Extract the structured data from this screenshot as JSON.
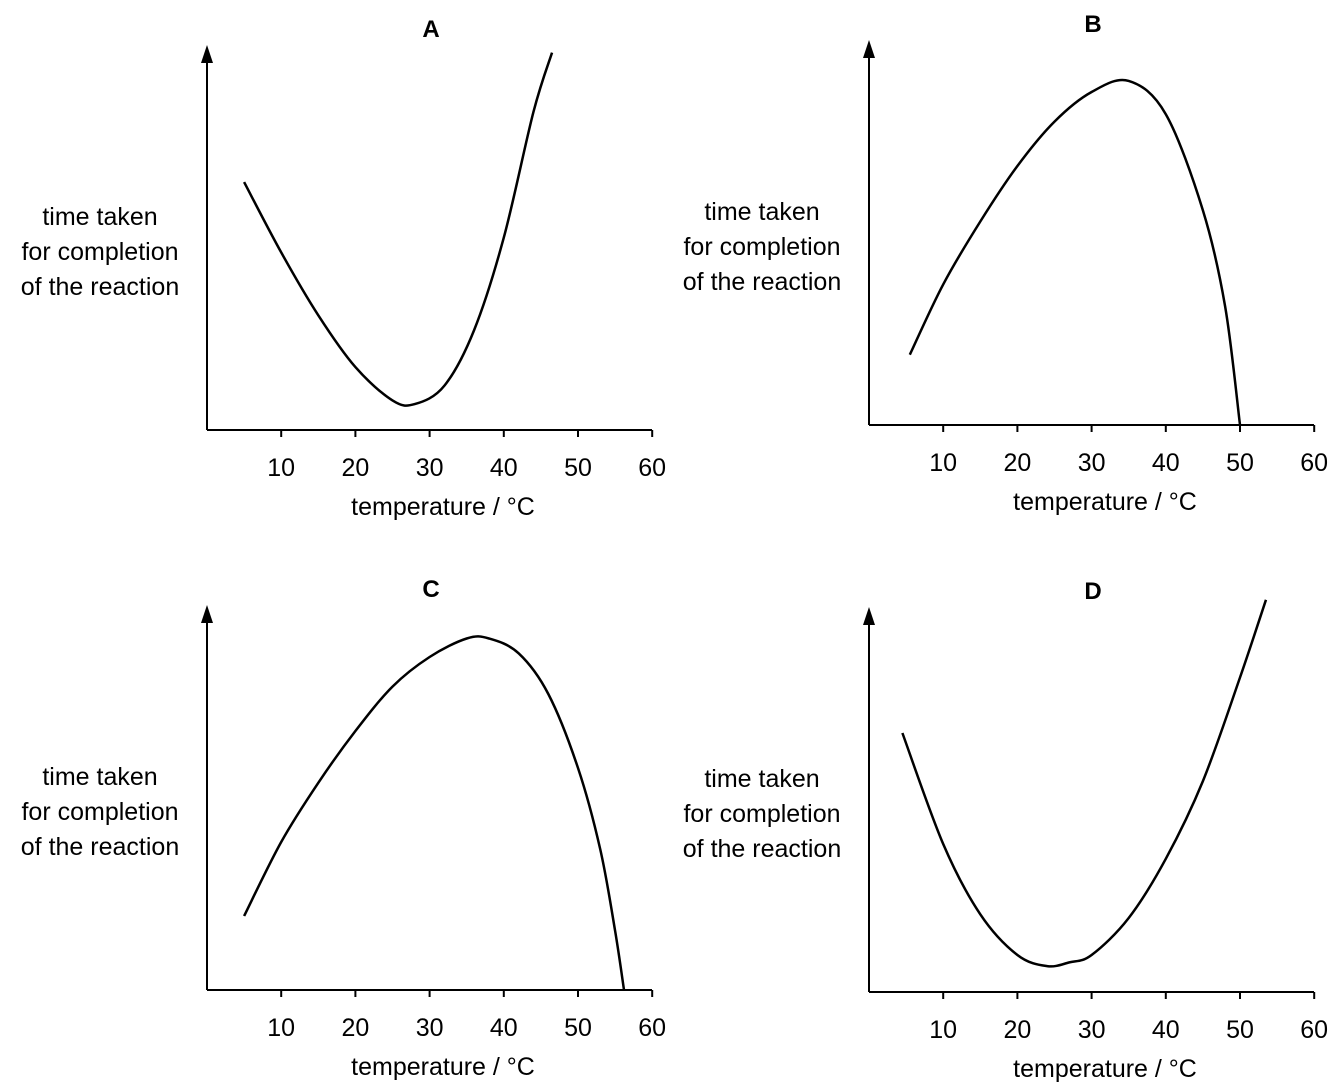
{
  "chart_data": [
    {
      "type": "line",
      "title": "A",
      "ylabel": [
        "time taken",
        "for completion",
        "of the reaction"
      ],
      "xlabel": "temperature / °C",
      "x_ticks": [
        "10",
        "20",
        "30",
        "40",
        "50",
        "60"
      ],
      "xlim": [
        0,
        60
      ],
      "ylim": [
        0,
        100
      ],
      "series": [
        {
          "x": [
            5,
            10,
            15,
            20,
            25,
            28,
            32,
            36,
            40,
            44,
            46.5
          ],
          "y": [
            67,
            48,
            31,
            17,
            8,
            7,
            12,
            27,
            52,
            86,
            102
          ]
        }
      ]
    },
    {
      "type": "line",
      "title": "B",
      "ylabel": [
        "time taken",
        "for completion",
        "of the reaction"
      ],
      "xlabel": "temperature / °C",
      "x_ticks": [
        "10",
        "20",
        "30",
        "40",
        "50",
        "60"
      ],
      "xlim": [
        0,
        60
      ],
      "ylim": [
        0,
        100
      ],
      "series": [
        {
          "x": [
            5.5,
            10,
            15,
            20,
            25,
            30,
            35,
            40,
            45,
            48,
            50
          ],
          "y": [
            19,
            38,
            55,
            70,
            82,
            90,
            93,
            84,
            58,
            32,
            0
          ]
        }
      ]
    },
    {
      "type": "line",
      "title": "C",
      "ylabel": [
        "time taken",
        "for completion",
        "of the reaction"
      ],
      "xlabel": "temperature / °C",
      "x_ticks": [
        "10",
        "20",
        "30",
        "40",
        "50",
        "60"
      ],
      "xlim": [
        0,
        60
      ],
      "ylim": [
        0,
        100
      ],
      "series": [
        {
          "x": [
            5,
            10,
            15,
            20,
            25,
            30,
            35,
            38,
            42,
            46,
            50,
            53,
            55,
            56.2
          ],
          "y": [
            20,
            40,
            56,
            70,
            82,
            90,
            95,
            95,
            91,
            80,
            60,
            38,
            16,
            0
          ]
        }
      ]
    },
    {
      "type": "line",
      "title": "D",
      "ylabel": [
        "time taken",
        "for completion",
        "of the reaction"
      ],
      "xlabel": "temperature / °C",
      "x_ticks": [
        "10",
        "20",
        "30",
        "40",
        "50",
        "60"
      ],
      "xlim": [
        0,
        60
      ],
      "ylim": [
        0,
        100
      ],
      "series": [
        {
          "x": [
            4.5,
            10,
            15,
            20,
            24,
            27,
            30,
            35,
            40,
            45,
            50,
            53.5
          ],
          "y": [
            70,
            40,
            21,
            10,
            7,
            8,
            10,
            20,
            36,
            57,
            85,
            106
          ]
        }
      ]
    }
  ]
}
